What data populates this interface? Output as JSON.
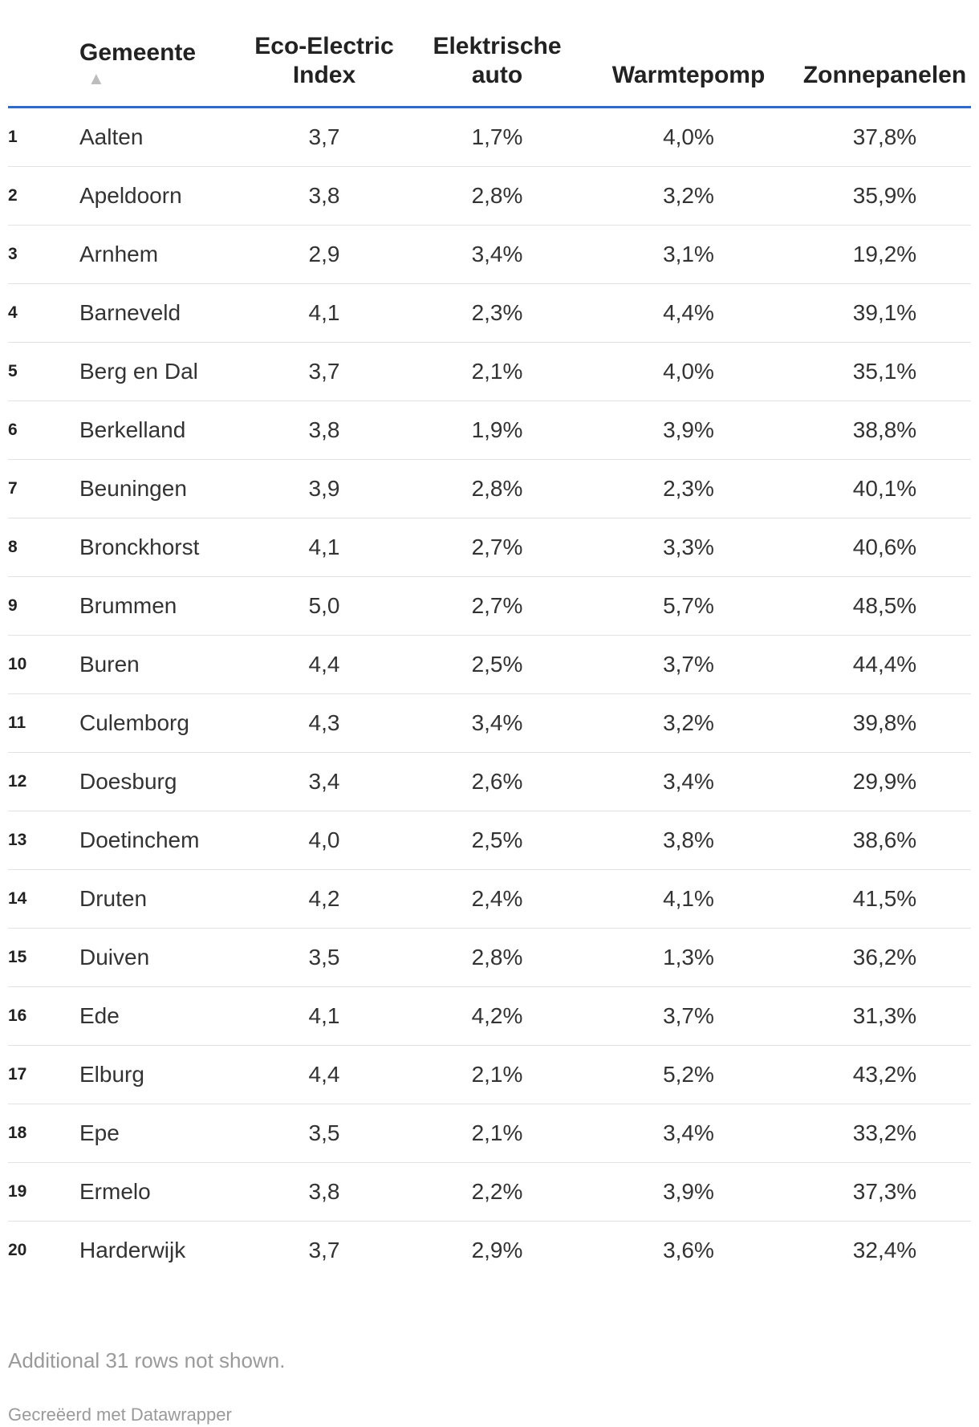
{
  "chart_data": {
    "type": "table",
    "columns": [
      "Gemeente",
      "Eco-Electric Index",
      "Elektrische auto",
      "Warmtepomp",
      "Zonnepanelen"
    ],
    "header_labels": {
      "gemeente": "Gemeente",
      "eco": "Eco-Electric Index",
      "auto": "Elektrische auto",
      "wp": "Warmtepomp",
      "zon": "Zonnepanelen"
    },
    "sort": {
      "column": "Gemeente",
      "direction": "ascending",
      "icon": "sort-ascending-icon"
    },
    "rows": [
      {
        "idx": "1",
        "gemeente": "Aalten",
        "eco": "3,7",
        "auto": "1,7%",
        "wp": "4,0%",
        "zon": "37,8%"
      },
      {
        "idx": "2",
        "gemeente": "Apeldoorn",
        "eco": "3,8",
        "auto": "2,8%",
        "wp": "3,2%",
        "zon": "35,9%"
      },
      {
        "idx": "3",
        "gemeente": "Arnhem",
        "eco": "2,9",
        "auto": "3,4%",
        "wp": "3,1%",
        "zon": "19,2%"
      },
      {
        "idx": "4",
        "gemeente": "Barneveld",
        "eco": "4,1",
        "auto": "2,3%",
        "wp": "4,4%",
        "zon": "39,1%"
      },
      {
        "idx": "5",
        "gemeente": "Berg en Dal",
        "eco": "3,7",
        "auto": "2,1%",
        "wp": "4,0%",
        "zon": "35,1%"
      },
      {
        "idx": "6",
        "gemeente": "Berkelland",
        "eco": "3,8",
        "auto": "1,9%",
        "wp": "3,9%",
        "zon": "38,8%"
      },
      {
        "idx": "7",
        "gemeente": "Beuningen",
        "eco": "3,9",
        "auto": "2,8%",
        "wp": "2,3%",
        "zon": "40,1%"
      },
      {
        "idx": "8",
        "gemeente": "Bronckhorst",
        "eco": "4,1",
        "auto": "2,7%",
        "wp": "3,3%",
        "zon": "40,6%"
      },
      {
        "idx": "9",
        "gemeente": "Brummen",
        "eco": "5,0",
        "auto": "2,7%",
        "wp": "5,7%",
        "zon": "48,5%"
      },
      {
        "idx": "10",
        "gemeente": "Buren",
        "eco": "4,4",
        "auto": "2,5%",
        "wp": "3,7%",
        "zon": "44,4%"
      },
      {
        "idx": "11",
        "gemeente": "Culemborg",
        "eco": "4,3",
        "auto": "3,4%",
        "wp": "3,2%",
        "zon": "39,8%"
      },
      {
        "idx": "12",
        "gemeente": "Doesburg",
        "eco": "3,4",
        "auto": "2,6%",
        "wp": "3,4%",
        "zon": "29,9%"
      },
      {
        "idx": "13",
        "gemeente": "Doetinchem",
        "eco": "4,0",
        "auto": "2,5%",
        "wp": "3,8%",
        "zon": "38,6%"
      },
      {
        "idx": "14",
        "gemeente": "Druten",
        "eco": "4,2",
        "auto": "2,4%",
        "wp": "4,1%",
        "zon": "41,5%"
      },
      {
        "idx": "15",
        "gemeente": "Duiven",
        "eco": "3,5",
        "auto": "2,8%",
        "wp": "1,3%",
        "zon": "36,2%"
      },
      {
        "idx": "16",
        "gemeente": "Ede",
        "eco": "4,1",
        "auto": "4,2%",
        "wp": "3,7%",
        "zon": "31,3%"
      },
      {
        "idx": "17",
        "gemeente": "Elburg",
        "eco": "4,4",
        "auto": "2,1%",
        "wp": "5,2%",
        "zon": "43,2%"
      },
      {
        "idx": "18",
        "gemeente": "Epe",
        "eco": "3,5",
        "auto": "2,1%",
        "wp": "3,4%",
        "zon": "33,2%"
      },
      {
        "idx": "19",
        "gemeente": "Ermelo",
        "eco": "3,8",
        "auto": "2,2%",
        "wp": "3,9%",
        "zon": "37,3%"
      },
      {
        "idx": "20",
        "gemeente": "Harderwijk",
        "eco": "3,7",
        "auto": "2,9%",
        "wp": "3,6%",
        "zon": "32,4%"
      }
    ],
    "footer_note": "Additional 31 rows not shown.",
    "credit": "Gecreëerd met Datawrapper",
    "accent_color": "#2f6bc6"
  }
}
